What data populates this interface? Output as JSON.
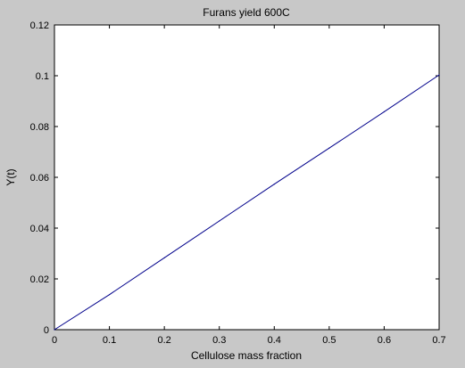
{
  "figure": {
    "background": "#c8c8c8",
    "axes_background": "#ffffff",
    "line_color": "#00008b"
  },
  "chart_data": {
    "type": "line",
    "title": "Furans yield 600C",
    "xlabel": "Cellulose mass fraction",
    "ylabel": "Y(t)",
    "xlim": [
      0,
      0.7
    ],
    "ylim": [
      0,
      0.12
    ],
    "xticks": [
      0,
      0.1,
      0.2,
      0.3,
      0.4,
      0.5,
      0.6,
      0.7
    ],
    "xtick_labels": [
      "0",
      "0.1",
      "0.2",
      "0.3",
      "0.4",
      "0.5",
      "0.6",
      "0.7"
    ],
    "yticks": [
      0,
      0.02,
      0.04,
      0.06,
      0.08,
      0.1,
      0.12
    ],
    "ytick_labels": [
      "0",
      "0.02",
      "0.04",
      "0.06",
      "0.08",
      "0.1",
      "0.12"
    ],
    "grid": false,
    "series": [
      {
        "x": [
          0,
          0.1,
          0.2,
          0.3,
          0.4,
          0.5,
          0.6,
          0.7
        ],
        "y": [
          0,
          0.0138,
          0.0283,
          0.0428,
          0.0573,
          0.0715,
          0.0858,
          0.1003
        ]
      }
    ]
  }
}
